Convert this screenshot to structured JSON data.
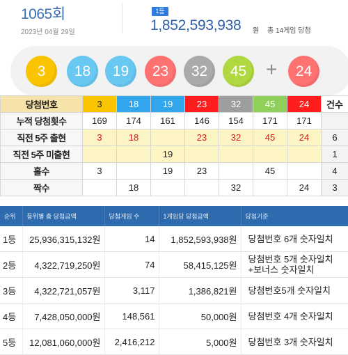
{
  "header": {
    "round": "1065회",
    "date": "2023년 04월 29일",
    "rank_badge": "1등",
    "first_prize_amount": "1,852,593,938",
    "amount_unit": "원",
    "amount_note": "총 14게임 당첨"
  },
  "balls": [
    {
      "number": "3",
      "color": "#fbc400"
    },
    {
      "number": "18",
      "color": "#69c8f2"
    },
    {
      "number": "19",
      "color": "#69c8f2"
    },
    {
      "number": "23",
      "color": "#ff7272"
    },
    {
      "number": "32",
      "color": "#aaaaaa"
    },
    {
      "number": "45",
      "color": "#b0d840"
    }
  ],
  "plus_sign": "+",
  "bonus_ball": {
    "number": "24",
    "color": "#ff7272"
  },
  "stats_table": {
    "header_label": "당첨번호",
    "numbers": [
      "3",
      "18",
      "19",
      "23",
      "32",
      "45",
      "24"
    ],
    "count_header": "건수",
    "rows": [
      {
        "label": "누적 당첨횟수",
        "cells": [
          "169",
          "174",
          "161",
          "146",
          "154",
          "171",
          "171"
        ],
        "count": ""
      },
      {
        "label": "직전 5주 출현",
        "cells": [
          "3",
          "18",
          "",
          "23",
          "32",
          "45",
          "24"
        ],
        "count": "6"
      },
      {
        "label": "직전 5주 미출현",
        "cells": [
          "",
          "",
          "19",
          "",
          "",
          "",
          ""
        ],
        "count": "1"
      },
      {
        "label": "홀수",
        "cells": [
          "3",
          "",
          "19",
          "23",
          "",
          "45",
          ""
        ],
        "count": "4"
      },
      {
        "label": "짝수",
        "cells": [
          "",
          "18",
          "",
          "",
          "32",
          "",
          "24"
        ],
        "count": "3"
      }
    ]
  },
  "prize_table": {
    "columns": [
      "순위",
      "등위별 총 당첨금액",
      "당첨게임 수",
      "1게임당 당첨금액",
      "당첨기준"
    ],
    "rows": [
      {
        "rank": "1등",
        "total": "25,936,315,132원",
        "games": "14",
        "per_game": "1,852,593,938원",
        "criteria": "당첨번호 6개 숫자일치",
        "criteria2": ""
      },
      {
        "rank": "2등",
        "total": "4,322,719,250원",
        "games": "74",
        "per_game": "58,415,125원",
        "criteria": "당첨번호 5개 숫자일치",
        "criteria2": "+보너스 숫자일치"
      },
      {
        "rank": "3등",
        "total": "4,322,721,057원",
        "games": "3,117",
        "per_game": "1,386,821원",
        "criteria": "당첨번호5개 숫자일치",
        "criteria2": ""
      },
      {
        "rank": "4등",
        "total": "7,428,050,000원",
        "games": "148,561",
        "per_game": "50,000원",
        "criteria": "당첨번호 4개 숫자일치",
        "criteria2": ""
      },
      {
        "rank": "5등",
        "total": "12,081,060,000원",
        "games": "2,416,212",
        "per_game": "5,000원",
        "criteria": "당첨번호 3개 숫자일치",
        "criteria2": ""
      }
    ]
  }
}
